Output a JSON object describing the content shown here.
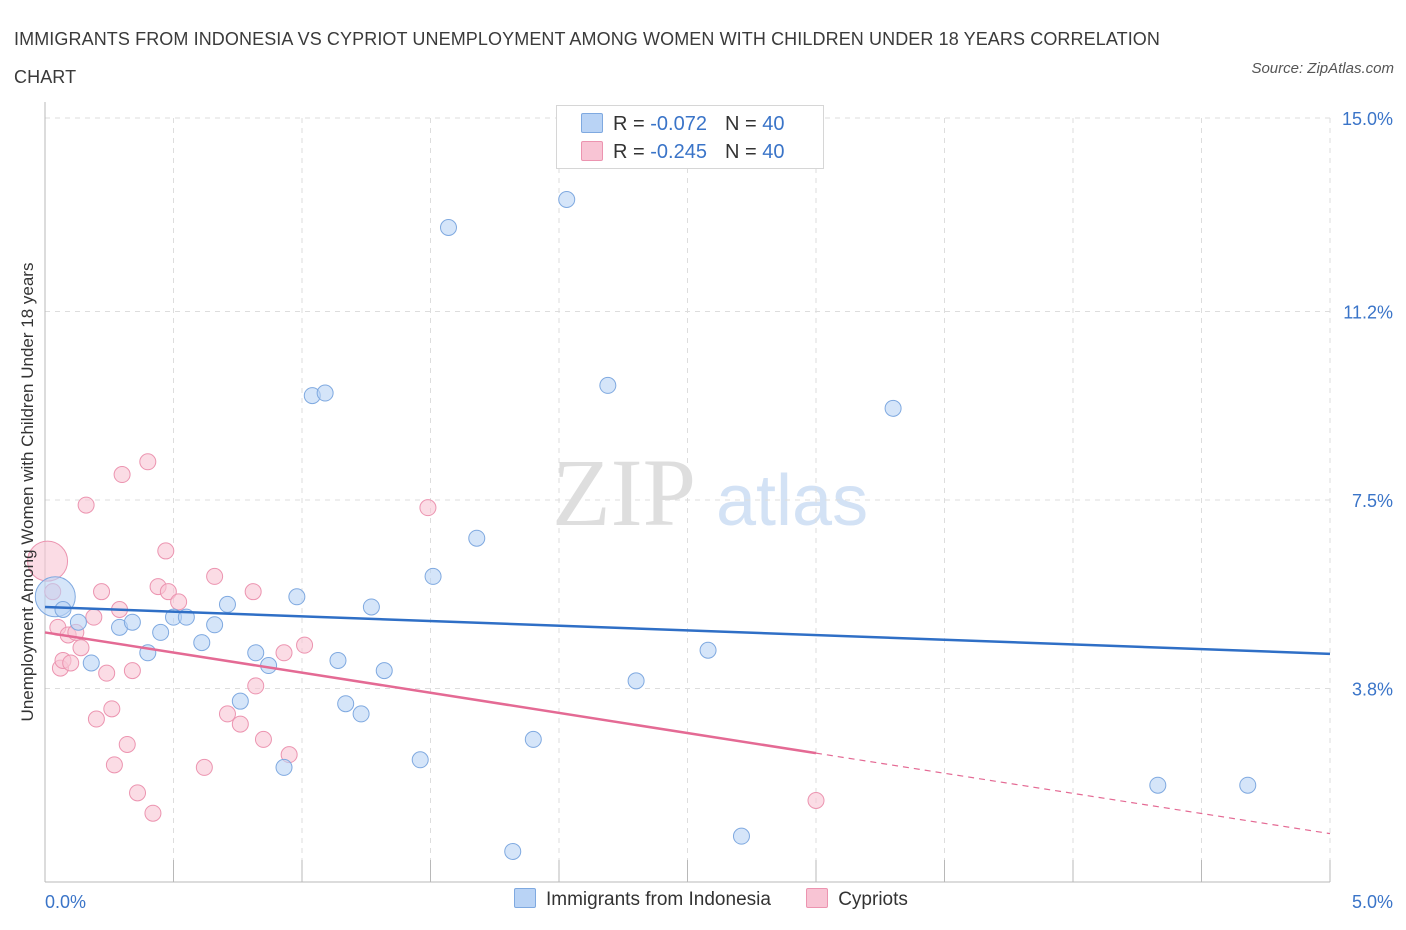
{
  "title": "IMMIGRANTS FROM INDONESIA VS CYPRIOT UNEMPLOYMENT AMONG WOMEN WITH CHILDREN UNDER 18 YEARS CORRELATION CHART",
  "source": "Source: ZipAtlas.com",
  "watermark": {
    "zip": "ZIP",
    "atlas": "atlas"
  },
  "legend_top": [
    {
      "r_label": "R = ",
      "r_value": "-0.072",
      "n_label": "N = ",
      "n_value": "40"
    },
    {
      "r_label": "R = ",
      "r_value": "-0.245",
      "n_label": "N = ",
      "n_value": "40"
    }
  ],
  "colors": {
    "blue_fill": "#b9d3f5",
    "blue_stroke": "#7fa9e0",
    "blue_line": "#2f6fc6",
    "pink_fill": "#f8c4d4",
    "pink_stroke": "#ec94b0",
    "pink_line": "#e46a94",
    "tick_label": "#3a74c8",
    "grid": "#dddddd"
  },
  "chart_data": {
    "type": "scatter",
    "title": "IMMIGRANTS FROM INDONESIA VS CYPRIOT UNEMPLOYMENT AMONG WOMEN WITH CHILDREN UNDER 18 YEARS CORRELATION CHART",
    "xlabel": "",
    "ylabel": "Unemployment Among Women with Children Under 18 years",
    "xlim": [
      0,
      5.0
    ],
    "ylim": [
      0,
      15.0
    ],
    "x_tick_labels": [
      {
        "value": 0,
        "label": "0.0%"
      },
      {
        "value": 5.0,
        "label": "5.0%"
      }
    ],
    "y_tick_labels": [
      {
        "value": 3.8,
        "label": "3.8%"
      },
      {
        "value": 7.5,
        "label": "7.5%"
      },
      {
        "value": 11.2,
        "label": "11.2%"
      },
      {
        "value": 15.0,
        "label": "15.0%"
      }
    ],
    "grid": true,
    "legend_position": "bottom",
    "series": [
      {
        "name": "Immigrants from Indonesia",
        "r": -0.072,
        "n": 40,
        "trend": {
          "x0": 0.0,
          "y0": 5.4,
          "x1": 5.0,
          "y1": 4.48,
          "solid_to": 5.0
        },
        "points": [
          {
            "x": 0.04,
            "y": 5.6,
            "big": true
          },
          {
            "x": 0.07,
            "y": 5.35
          },
          {
            "x": 0.13,
            "y": 5.1
          },
          {
            "x": 0.18,
            "y": 4.3
          },
          {
            "x": 0.29,
            "y": 5.0
          },
          {
            "x": 0.34,
            "y": 5.1
          },
          {
            "x": 0.4,
            "y": 4.5
          },
          {
            "x": 0.45,
            "y": 4.9
          },
          {
            "x": 0.5,
            "y": 5.2
          },
          {
            "x": 0.55,
            "y": 5.2
          },
          {
            "x": 0.61,
            "y": 4.7
          },
          {
            "x": 0.66,
            "y": 5.05
          },
          {
            "x": 0.71,
            "y": 5.45
          },
          {
            "x": 0.76,
            "y": 3.55
          },
          {
            "x": 0.82,
            "y": 4.5
          },
          {
            "x": 0.87,
            "y": 4.25
          },
          {
            "x": 0.93,
            "y": 2.25
          },
          {
            "x": 0.98,
            "y": 5.6
          },
          {
            "x": 1.04,
            "y": 9.55
          },
          {
            "x": 1.09,
            "y": 9.6
          },
          {
            "x": 1.14,
            "y": 4.35
          },
          {
            "x": 1.17,
            "y": 3.5
          },
          {
            "x": 1.23,
            "y": 3.3
          },
          {
            "x": 1.27,
            "y": 5.4
          },
          {
            "x": 1.32,
            "y": 4.15
          },
          {
            "x": 1.46,
            "y": 2.4
          },
          {
            "x": 1.51,
            "y": 6.0
          },
          {
            "x": 1.57,
            "y": 12.85
          },
          {
            "x": 1.68,
            "y": 6.75
          },
          {
            "x": 1.82,
            "y": 0.6
          },
          {
            "x": 1.9,
            "y": 2.8
          },
          {
            "x": 2.03,
            "y": 13.4
          },
          {
            "x": 2.19,
            "y": 9.75
          },
          {
            "x": 2.3,
            "y": 3.95
          },
          {
            "x": 2.58,
            "y": 4.55
          },
          {
            "x": 2.71,
            "y": 0.9
          },
          {
            "x": 3.3,
            "y": 9.3
          },
          {
            "x": 4.33,
            "y": 1.9
          },
          {
            "x": 4.68,
            "y": 1.9
          }
        ]
      },
      {
        "name": "Cypriots",
        "r": -0.245,
        "n": 40,
        "trend": {
          "x0": 0.0,
          "y0": 4.9,
          "x1": 5.0,
          "y1": 0.95,
          "solid_to": 3.0
        },
        "points": [
          {
            "x": 0.01,
            "y": 6.3,
            "big": true
          },
          {
            "x": 0.03,
            "y": 5.7
          },
          {
            "x": 0.05,
            "y": 5.0
          },
          {
            "x": 0.06,
            "y": 4.2
          },
          {
            "x": 0.07,
            "y": 4.35
          },
          {
            "x": 0.09,
            "y": 4.85
          },
          {
            "x": 0.1,
            "y": 4.3
          },
          {
            "x": 0.12,
            "y": 4.9
          },
          {
            "x": 0.14,
            "y": 4.6
          },
          {
            "x": 0.16,
            "y": 7.4
          },
          {
            "x": 0.19,
            "y": 5.2
          },
          {
            "x": 0.2,
            "y": 3.2
          },
          {
            "x": 0.22,
            "y": 5.7
          },
          {
            "x": 0.24,
            "y": 4.1
          },
          {
            "x": 0.26,
            "y": 3.4
          },
          {
            "x": 0.27,
            "y": 2.3
          },
          {
            "x": 0.29,
            "y": 5.35
          },
          {
            "x": 0.3,
            "y": 8.0
          },
          {
            "x": 0.32,
            "y": 2.7
          },
          {
            "x": 0.34,
            "y": 4.15
          },
          {
            "x": 0.36,
            "y": 1.75
          },
          {
            "x": 0.4,
            "y": 8.25
          },
          {
            "x": 0.42,
            "y": 1.35
          },
          {
            "x": 0.44,
            "y": 5.8
          },
          {
            "x": 0.47,
            "y": 6.5
          },
          {
            "x": 0.48,
            "y": 5.7
          },
          {
            "x": 0.52,
            "y": 5.5
          },
          {
            "x": 0.62,
            "y": 2.25
          },
          {
            "x": 0.66,
            "y": 6.0
          },
          {
            "x": 0.71,
            "y": 3.3
          },
          {
            "x": 0.76,
            "y": 3.1
          },
          {
            "x": 0.81,
            "y": 5.7
          },
          {
            "x": 0.82,
            "y": 3.85
          },
          {
            "x": 0.85,
            "y": 2.8
          },
          {
            "x": 0.93,
            "y": 4.5
          },
          {
            "x": 0.95,
            "y": 2.5
          },
          {
            "x": 1.01,
            "y": 4.65
          },
          {
            "x": 1.49,
            "y": 7.35
          },
          {
            "x": 3.0,
            "y": 1.6
          }
        ]
      }
    ]
  }
}
